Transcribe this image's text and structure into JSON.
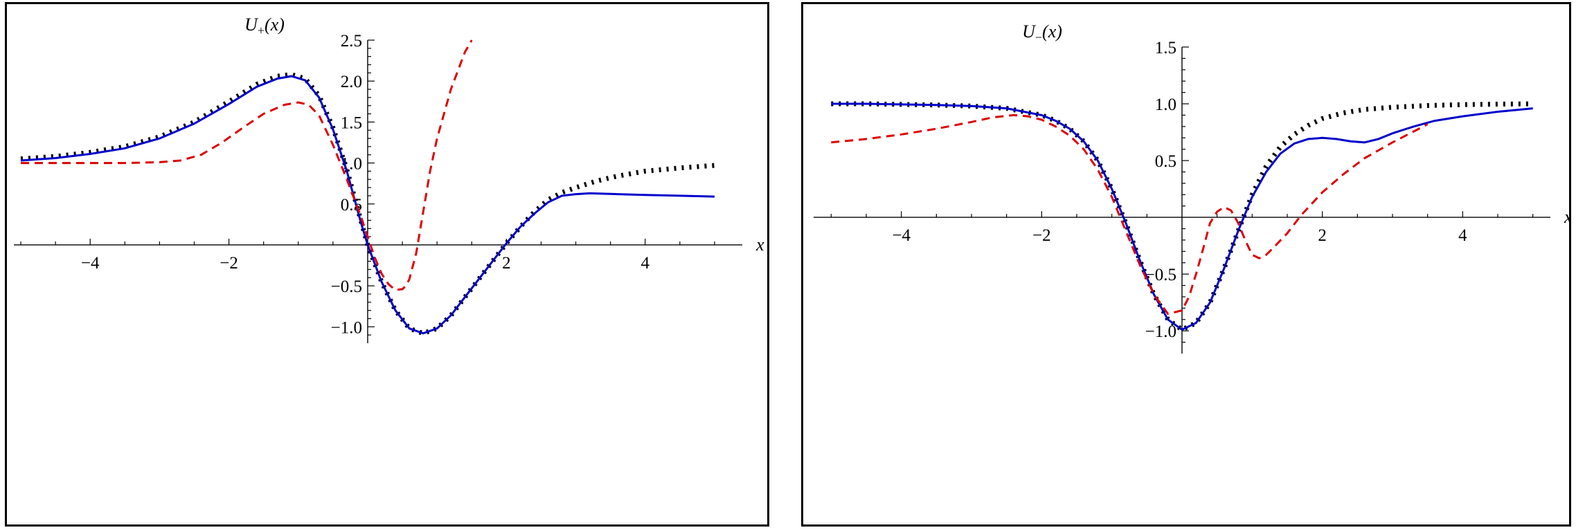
{
  "chart_data": [
    {
      "type": "line",
      "title": "",
      "xlabel": "x",
      "ylabel": "U₊(x)",
      "ylabel_parts": {
        "main": "U",
        "sub": "+",
        "tail": "(x)"
      },
      "xlim": [
        -5.1,
        5.4
      ],
      "ylim": [
        -1.2,
        2.5
      ],
      "xticks": [
        -4,
        -2,
        2,
        4
      ],
      "xtick_labels": [
        "−4",
        "−2",
        "2",
        "4"
      ],
      "xticks_minor": [
        -5,
        -4.5,
        -3.5,
        -3,
        -2.5,
        -1.5,
        -1,
        -0.5,
        0.5,
        1,
        1.5,
        2.5,
        3,
        3.5,
        4.5,
        5
      ],
      "yticks": [
        -1.0,
        -0.5,
        0.5,
        1.0,
        1.5,
        2.0,
        2.5
      ],
      "ytick_labels": [
        "−1.0",
        "−0.5",
        "0.5",
        "1.0",
        "1.5",
        "2.0",
        "2.5"
      ],
      "yticks_minor": [
        -1.1,
        -0.9,
        -0.8,
        -0.7,
        -0.6,
        -0.4,
        -0.3,
        -0.2,
        -0.1,
        0.1,
        0.2,
        0.3,
        0.4,
        0.6,
        0.7,
        0.8,
        0.9,
        1.1,
        1.2,
        1.3,
        1.4,
        1.6,
        1.7,
        1.8,
        1.9,
        2.1,
        2.2,
        2.3,
        2.4
      ],
      "grid": false,
      "series": [
        {
          "style": "dotted",
          "color": "#000000",
          "x": [
            -5,
            -4.5,
            -4,
            -3.5,
            -3,
            -2.5,
            -2,
            -1.6,
            -1.3,
            -1.1,
            -0.9,
            -0.7,
            -0.5,
            -0.3,
            -0.1,
            0,
            0.2,
            0.4,
            0.6,
            0.8,
            1,
            1.2,
            1.4,
            1.6,
            1.8,
            2,
            2.2,
            2.4,
            2.6,
            2.8,
            3,
            3.3,
            3.6,
            4,
            4.5,
            5
          ],
          "y": [
            1.05,
            1.08,
            1.13,
            1.2,
            1.32,
            1.5,
            1.75,
            1.96,
            2.06,
            2.08,
            2.03,
            1.82,
            1.43,
            0.92,
            0.3,
            0.0,
            -0.45,
            -0.8,
            -1.02,
            -1.08,
            -1.02,
            -0.86,
            -0.64,
            -0.42,
            -0.2,
            0.02,
            0.22,
            0.4,
            0.55,
            0.64,
            0.7,
            0.78,
            0.84,
            0.9,
            0.94,
            0.97
          ]
        },
        {
          "style": "solid",
          "color": "#0000cc",
          "x": [
            -5,
            -4.5,
            -4,
            -3.5,
            -3,
            -2.5,
            -2,
            -1.6,
            -1.3,
            -1.1,
            -0.9,
            -0.7,
            -0.5,
            -0.3,
            -0.1,
            0,
            0.2,
            0.4,
            0.6,
            0.8,
            1,
            1.2,
            1.4,
            1.6,
            1.8,
            2,
            2.2,
            2.4,
            2.6,
            2.8,
            3,
            3.2,
            3.6,
            4,
            4.5,
            5
          ],
          "y": [
            1.03,
            1.06,
            1.11,
            1.18,
            1.3,
            1.48,
            1.72,
            1.93,
            2.03,
            2.06,
            2.01,
            1.8,
            1.41,
            0.9,
            0.28,
            0.0,
            -0.45,
            -0.8,
            -1.02,
            -1.08,
            -1.02,
            -0.86,
            -0.64,
            -0.42,
            -0.2,
            0.02,
            0.22,
            0.38,
            0.52,
            0.6,
            0.62,
            0.63,
            0.62,
            0.61,
            0.6,
            0.59
          ]
        },
        {
          "style": "dashed",
          "color": "#dd0000",
          "x": [
            -5,
            -4.5,
            -4,
            -3.5,
            -3,
            -2.7,
            -2.4,
            -2.1,
            -1.8,
            -1.5,
            -1.2,
            -1,
            -0.85,
            -0.7,
            -0.5,
            -0.3,
            -0.1,
            0,
            0.1,
            0.2,
            0.3,
            0.4,
            0.5,
            0.55,
            0.6,
            0.7,
            0.8,
            0.9,
            1,
            1.2,
            1.4,
            1.5
          ],
          "y": [
            1.0,
            1.0,
            1.0,
            1.0,
            1.01,
            1.03,
            1.1,
            1.25,
            1.43,
            1.6,
            1.71,
            1.74,
            1.71,
            1.58,
            1.22,
            0.8,
            0.35,
            0.1,
            -0.15,
            -0.35,
            -0.48,
            -0.55,
            -0.54,
            -0.5,
            -0.42,
            -0.1,
            0.4,
            0.9,
            1.3,
            1.9,
            2.35,
            2.5
          ]
        }
      ]
    },
    {
      "type": "line",
      "title": "",
      "xlabel": "x",
      "ylabel": "U₋(x)",
      "ylabel_parts": {
        "main": "U",
        "sub": "−",
        "tail": "(x)"
      },
      "xlim": [
        -5.25,
        5.25
      ],
      "ylim": [
        -1.2,
        1.5
      ],
      "xticks": [
        -4,
        -2,
        2,
        4
      ],
      "xtick_labels": [
        "−4",
        "−2",
        "2",
        "4"
      ],
      "xticks_minor": [
        -5,
        -4.5,
        -3.5,
        -3,
        -2.5,
        -1.5,
        -1,
        -0.5,
        0.5,
        1,
        1.5,
        2.5,
        3,
        3.5,
        4.5,
        5
      ],
      "yticks": [
        -1.0,
        -0.5,
        0.5,
        1.0,
        1.5
      ],
      "ytick_labels": [
        "−1.0",
        "−0.5",
        "0.5",
        "1.0",
        "1.5"
      ],
      "yticks_minor": [
        -1.1,
        -0.9,
        -0.8,
        -0.7,
        -0.6,
        -0.4,
        -0.3,
        -0.2,
        -0.1,
        0.1,
        0.2,
        0.3,
        0.4,
        0.6,
        0.7,
        0.8,
        0.9,
        1.1,
        1.2,
        1.3,
        1.4
      ],
      "grid": false,
      "series": [
        {
          "style": "dotted",
          "color": "#000000",
          "x": [
            -5,
            -4.5,
            -4,
            -3.5,
            -3,
            -2.5,
            -2,
            -1.8,
            -1.6,
            -1.4,
            -1.2,
            -1,
            -0.8,
            -0.6,
            -0.4,
            -0.2,
            0,
            0.2,
            0.4,
            0.6,
            0.8,
            1,
            1.2,
            1.4,
            1.6,
            1.8,
            2,
            2.3,
            2.6,
            3,
            3.5,
            4,
            4.5,
            5
          ],
          "y": [
            1.0,
            1.0,
            0.995,
            0.99,
            0.98,
            0.96,
            0.9,
            0.85,
            0.78,
            0.67,
            0.5,
            0.25,
            -0.05,
            -0.38,
            -0.68,
            -0.9,
            -0.99,
            -0.93,
            -0.75,
            -0.45,
            -0.12,
            0.2,
            0.45,
            0.62,
            0.73,
            0.81,
            0.87,
            0.92,
            0.95,
            0.97,
            0.985,
            0.993,
            0.997,
            1.0
          ]
        },
        {
          "style": "solid",
          "color": "#0000cc",
          "x": [
            -5,
            -4.5,
            -4,
            -3.5,
            -3,
            -2.5,
            -2,
            -1.8,
            -1.6,
            -1.4,
            -1.2,
            -1,
            -0.8,
            -0.6,
            -0.4,
            -0.2,
            0,
            0.2,
            0.4,
            0.6,
            0.8,
            1,
            1.2,
            1.4,
            1.6,
            1.8,
            2,
            2.2,
            2.4,
            2.6,
            2.8,
            3,
            3.3,
            3.6,
            4,
            4.5,
            5
          ],
          "y": [
            1.0,
            1.0,
            0.995,
            0.99,
            0.98,
            0.96,
            0.9,
            0.85,
            0.78,
            0.67,
            0.5,
            0.25,
            -0.05,
            -0.38,
            -0.68,
            -0.9,
            -0.99,
            -0.93,
            -0.75,
            -0.45,
            -0.12,
            0.18,
            0.4,
            0.56,
            0.65,
            0.69,
            0.7,
            0.69,
            0.67,
            0.66,
            0.69,
            0.74,
            0.8,
            0.85,
            0.89,
            0.93,
            0.96
          ]
        },
        {
          "style": "dashed",
          "color": "#dd0000",
          "x": [
            -5,
            -4.5,
            -4,
            -3.5,
            -3,
            -2.7,
            -2.4,
            -2.2,
            -2,
            -1.8,
            -1.6,
            -1.4,
            -1.2,
            -1,
            -0.8,
            -0.6,
            -0.4,
            -0.2,
            0,
            0.1,
            0.2,
            0.3,
            0.4,
            0.5,
            0.6,
            0.7,
            0.8,
            0.9,
            1,
            1.1,
            1.2,
            1.3,
            1.5,
            1.7,
            2,
            2.3,
            2.6,
            3,
            3.5
          ],
          "y": [
            0.66,
            0.69,
            0.73,
            0.78,
            0.84,
            0.88,
            0.9,
            0.89,
            0.86,
            0.8,
            0.72,
            0.6,
            0.42,
            0.18,
            -0.12,
            -0.42,
            -0.68,
            -0.85,
            -0.82,
            -0.7,
            -0.5,
            -0.28,
            -0.05,
            0.05,
            0.09,
            0.06,
            -0.05,
            -0.2,
            -0.33,
            -0.36,
            -0.33,
            -0.27,
            -0.14,
            0.02,
            0.22,
            0.38,
            0.52,
            0.66,
            0.82
          ]
        }
      ]
    }
  ]
}
